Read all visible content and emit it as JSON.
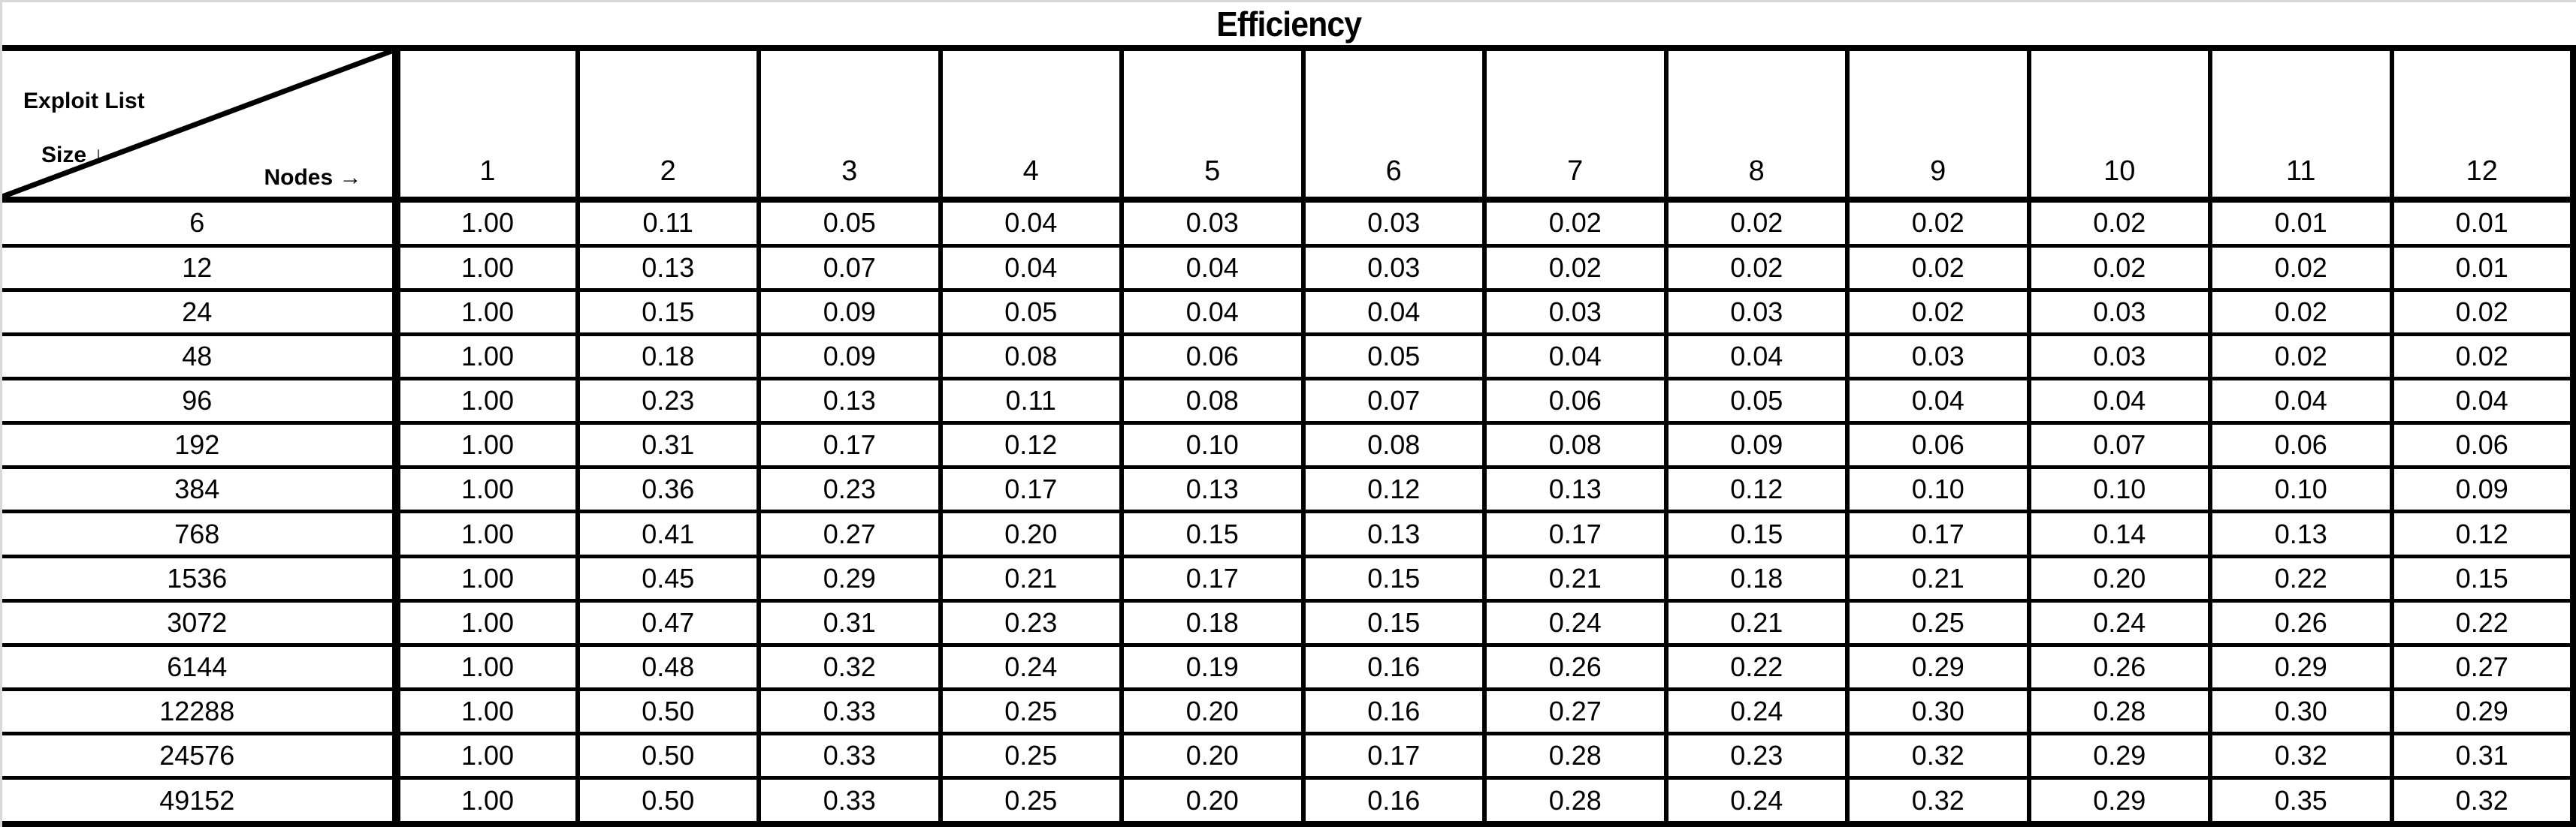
{
  "title": "Efficiency",
  "corner": {
    "top_label": "Exploit List",
    "left_label": "Size ↓",
    "right_label": "Nodes →"
  },
  "colors": {
    "border": "#000000",
    "background": "#ffffff",
    "screen_edge": "#d8d8d8"
  },
  "chart_data": {
    "type": "table",
    "title": "Efficiency",
    "row_axis_label": "Exploit List Size",
    "col_axis_label": "Nodes",
    "columns": [
      "1",
      "2",
      "3",
      "4",
      "5",
      "6",
      "7",
      "8",
      "9",
      "10",
      "11",
      "12"
    ],
    "rows": [
      "6",
      "12",
      "24",
      "48",
      "96",
      "192",
      "384",
      "768",
      "1536",
      "3072",
      "6144",
      "12288",
      "24576",
      "49152"
    ],
    "values": [
      [
        "1.00",
        "0.11",
        "0.05",
        "0.04",
        "0.03",
        "0.03",
        "0.02",
        "0.02",
        "0.02",
        "0.02",
        "0.01",
        "0.01"
      ],
      [
        "1.00",
        "0.13",
        "0.07",
        "0.04",
        "0.04",
        "0.03",
        "0.02",
        "0.02",
        "0.02",
        "0.02",
        "0.02",
        "0.01"
      ],
      [
        "1.00",
        "0.15",
        "0.09",
        "0.05",
        "0.04",
        "0.04",
        "0.03",
        "0.03",
        "0.02",
        "0.03",
        "0.02",
        "0.02"
      ],
      [
        "1.00",
        "0.18",
        "0.09",
        "0.08",
        "0.06",
        "0.05",
        "0.04",
        "0.04",
        "0.03",
        "0.03",
        "0.02",
        "0.02"
      ],
      [
        "1.00",
        "0.23",
        "0.13",
        "0.11",
        "0.08",
        "0.07",
        "0.06",
        "0.05",
        "0.04",
        "0.04",
        "0.04",
        "0.04"
      ],
      [
        "1.00",
        "0.31",
        "0.17",
        "0.12",
        "0.10",
        "0.08",
        "0.08",
        "0.09",
        "0.06",
        "0.07",
        "0.06",
        "0.06"
      ],
      [
        "1.00",
        "0.36",
        "0.23",
        "0.17",
        "0.13",
        "0.12",
        "0.13",
        "0.12",
        "0.10",
        "0.10",
        "0.10",
        "0.09"
      ],
      [
        "1.00",
        "0.41",
        "0.27",
        "0.20",
        "0.15",
        "0.13",
        "0.17",
        "0.15",
        "0.17",
        "0.14",
        "0.13",
        "0.12"
      ],
      [
        "1.00",
        "0.45",
        "0.29",
        "0.21",
        "0.17",
        "0.15",
        "0.21",
        "0.18",
        "0.21",
        "0.20",
        "0.22",
        "0.15"
      ],
      [
        "1.00",
        "0.47",
        "0.31",
        "0.23",
        "0.18",
        "0.15",
        "0.24",
        "0.21",
        "0.25",
        "0.24",
        "0.26",
        "0.22"
      ],
      [
        "1.00",
        "0.48",
        "0.32",
        "0.24",
        "0.19",
        "0.16",
        "0.26",
        "0.22",
        "0.29",
        "0.26",
        "0.29",
        "0.27"
      ],
      [
        "1.00",
        "0.50",
        "0.33",
        "0.25",
        "0.20",
        "0.16",
        "0.27",
        "0.24",
        "0.30",
        "0.28",
        "0.30",
        "0.29"
      ],
      [
        "1.00",
        "0.50",
        "0.33",
        "0.25",
        "0.20",
        "0.17",
        "0.28",
        "0.23",
        "0.32",
        "0.29",
        "0.32",
        "0.31"
      ],
      [
        "1.00",
        "0.50",
        "0.33",
        "0.25",
        "0.20",
        "0.16",
        "0.28",
        "0.24",
        "0.32",
        "0.29",
        "0.35",
        "0.32"
      ]
    ]
  }
}
